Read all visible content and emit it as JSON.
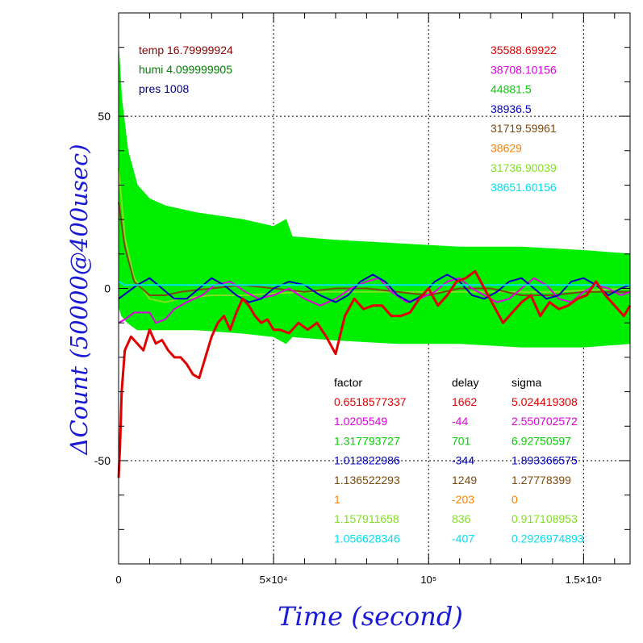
{
  "env": {
    "temp": "temp 16.79999924",
    "humi": "humi 4.099999905",
    "pres": "pres 1008"
  },
  "means": [
    {
      "text": "35588.69922",
      "color": "#e00000"
    },
    {
      "text": "38708.10156",
      "color": "#e000e0"
    },
    {
      "text": "44881.5",
      "color": "#00d000"
    },
    {
      "text": "38936.5",
      "color": "#0000c0"
    },
    {
      "text": "31719.59961",
      "color": "#7a4a10"
    },
    {
      "text": "38629",
      "color": "#ff8000"
    },
    {
      "text": "31736.90039",
      "color": "#80e020"
    },
    {
      "text": "38651.60156",
      "color": "#00e0f0"
    }
  ],
  "fit_table": {
    "headers": [
      "factor",
      "delay",
      "sigma"
    ],
    "rows": [
      {
        "factor": "0.6518577337",
        "delay": "1662",
        "sigma": "5.024419308",
        "color": "#e00000"
      },
      {
        "factor": "1.0205549",
        "delay": "-44",
        "sigma": "2.550702572",
        "color": "#e000e0"
      },
      {
        "factor": "1.317793727",
        "delay": "701",
        "sigma": "6.92750597",
        "color": "#00d000"
      },
      {
        "factor": "1.012822986",
        "delay": "-344",
        "sigma": "1.893366575",
        "color": "#0000c0"
      },
      {
        "factor": "1.136522293",
        "delay": "1249",
        "sigma": "1.27778399",
        "color": "#7a4a10"
      },
      {
        "factor": "1",
        "delay": "-203",
        "sigma": "0",
        "color": "#ff8000"
      },
      {
        "factor": "1.157911658",
        "delay": "836",
        "sigma": "0.917108953",
        "color": "#80e020"
      },
      {
        "factor": "1.056628346",
        "delay": "-407",
        "sigma": "0.2926974893",
        "color": "#00e0f0"
      }
    ]
  },
  "chart_data": {
    "type": "line",
    "xlabel": "Time (second)",
    "ylabel": "ΔCount (50000@400usec)",
    "xlim": [
      0,
      165000
    ],
    "ylim": [
      -80,
      80
    ],
    "x_ticks": [
      {
        "value": 0,
        "label": "0"
      },
      {
        "value": 50000,
        "label": "5×10⁴"
      },
      {
        "value": 100000,
        "label": "10⁵"
      },
      {
        "value": 150000,
        "label": "1.5×10⁵"
      }
    ],
    "y_ticks": [
      {
        "value": 50,
        "label": "50"
      },
      {
        "value": 0,
        "label": "0"
      },
      {
        "value": -50,
        "label": "-50"
      }
    ],
    "y_minor_step": 10,
    "x_minor_step": 10000,
    "grid": true,
    "series": [
      {
        "color": "#00ee00",
        "band": true,
        "x": [
          0,
          1000,
          3000,
          6000,
          10000,
          15000,
          25000,
          40000,
          50000,
          54000,
          56000,
          70000,
          90000,
          110000,
          130000,
          150000,
          165000
        ],
        "upper": [
          70,
          55,
          40,
          30,
          26,
          24,
          22,
          20,
          18,
          20,
          15,
          14,
          13,
          12,
          12,
          11,
          10
        ],
        "lower": [
          -5,
          -8,
          -10,
          -12,
          -12,
          -12,
          -12,
          -13,
          -14,
          -16,
          -14,
          -15,
          -16,
          -16,
          -17,
          -17,
          -16
        ]
      },
      {
        "color": "#80e020",
        "x": [
          0,
          2000,
          5000,
          10000,
          15000,
          20000,
          30000,
          40000,
          60000,
          80000,
          100000,
          120000,
          140000,
          165000
        ],
        "values": [
          35,
          15,
          3,
          -3,
          -4,
          -3,
          -2,
          -2,
          -1,
          -1,
          -1,
          -1,
          -1,
          0
        ]
      },
      {
        "color": "#7a4a10",
        "x": [
          0,
          2000,
          5000,
          10000,
          15000,
          20000,
          30000,
          40000,
          50000,
          60000,
          70000,
          80000,
          90000,
          100000,
          110000,
          120000,
          130000,
          140000,
          150000,
          165000
        ],
        "values": [
          25,
          12,
          2,
          -2,
          -2,
          -1,
          0,
          1,
          0,
          -1,
          0,
          0,
          -1,
          -2,
          0,
          0,
          -2,
          -2,
          -1,
          -1
        ]
      },
      {
        "color": "#e000e0",
        "x": [
          0,
          2000,
          5000,
          10000,
          12000,
          15000,
          18000,
          22000,
          27000,
          31000,
          36000,
          41000,
          45000,
          50000,
          55000,
          60000,
          65000,
          70000,
          75000,
          80000,
          84000,
          88000,
          93000,
          97000,
          102000,
          106000,
          110000,
          114000,
          118000,
          122000,
          126000,
          130000,
          134000,
          138000,
          142000,
          146000,
          150000,
          154000,
          158000,
          162000,
          165000
        ],
        "values": [
          -10,
          -9,
          -7,
          -7,
          -10,
          -9,
          -6,
          -4,
          -2,
          1,
          2,
          -1,
          -3,
          -2,
          0,
          -3,
          -5,
          -3,
          0,
          2,
          3,
          -1,
          -4,
          -3,
          -1,
          2,
          3,
          0,
          -2,
          -4,
          -3,
          0,
          3,
          1,
          -3,
          -4,
          -1,
          1,
          0,
          -2,
          -1
        ]
      },
      {
        "color": "#0000c0",
        "x": [
          0,
          1500,
          3000,
          6000,
          10000,
          14000,
          18000,
          22000,
          26000,
          30000,
          34000,
          38000,
          42000,
          46000,
          50000,
          55000,
          60000,
          65000,
          70000,
          74000,
          78000,
          82000,
          86000,
          90000,
          94000,
          98000,
          102000,
          106000,
          110000,
          114000,
          118000,
          122000,
          126000,
          130000,
          134000,
          138000,
          142000,
          146000,
          150000,
          154000,
          158000,
          162000,
          165000
        ],
        "values": [
          -3,
          -2,
          -1,
          1,
          3,
          0,
          -3,
          -3,
          0,
          3,
          1,
          -2,
          -4,
          -3,
          0,
          2,
          1,
          -2,
          -4,
          -2,
          2,
          4,
          2,
          -2,
          -4,
          -2,
          2,
          4,
          2,
          -2,
          -3,
          -1,
          2,
          3,
          0,
          -3,
          -2,
          2,
          3,
          1,
          -2,
          0,
          1
        ]
      },
      {
        "color": "#00e0f0",
        "x": [
          0,
          2000,
          5000,
          10000,
          30000,
          60000,
          90000,
          120000,
          150000,
          165000
        ],
        "values": [
          2,
          1,
          1,
          1,
          1,
          1,
          1,
          1,
          1,
          1
        ]
      },
      {
        "color": "#e00000",
        "x": [
          0,
          500,
          1000,
          2000,
          4000,
          6000,
          8000,
          10000,
          12000,
          14000,
          16000,
          18000,
          20000,
          22000,
          24000,
          26000,
          28000,
          30000,
          32000,
          34000,
          36000,
          38000,
          40000,
          42000,
          44000,
          46000,
          48000,
          50000,
          52000,
          55000,
          58000,
          61000,
          64000,
          67000,
          70000,
          73000,
          76000,
          79000,
          82000,
          85000,
          88000,
          91000,
          94000,
          97000,
          100000,
          103000,
          106000,
          109000,
          112000,
          115000,
          118000,
          121000,
          124000,
          127000,
          130000,
          133000,
          136000,
          139000,
          142000,
          145000,
          148000,
          151000,
          154000,
          157000,
          160000,
          163000,
          165000
        ],
        "values": [
          -55,
          -45,
          -30,
          -18,
          -14,
          -16,
          -18,
          -12,
          -16,
          -15,
          -18,
          -20,
          -20,
          -22,
          -25,
          -26,
          -20,
          -14,
          -10,
          -8,
          -12,
          -7,
          -3,
          -5,
          -8,
          -10,
          -9,
          -12,
          -12,
          -13,
          -10,
          -12,
          -10,
          -14,
          -19,
          -8,
          -3,
          -6,
          -5,
          -5,
          -8,
          -8,
          -7,
          -3,
          0,
          -5,
          -2,
          2,
          3,
          5,
          0,
          -5,
          -10,
          -7,
          -4,
          -2,
          -8,
          -4,
          -6,
          -5,
          -3,
          -2,
          2,
          -2,
          -5,
          -8,
          -5
        ]
      }
    ]
  }
}
